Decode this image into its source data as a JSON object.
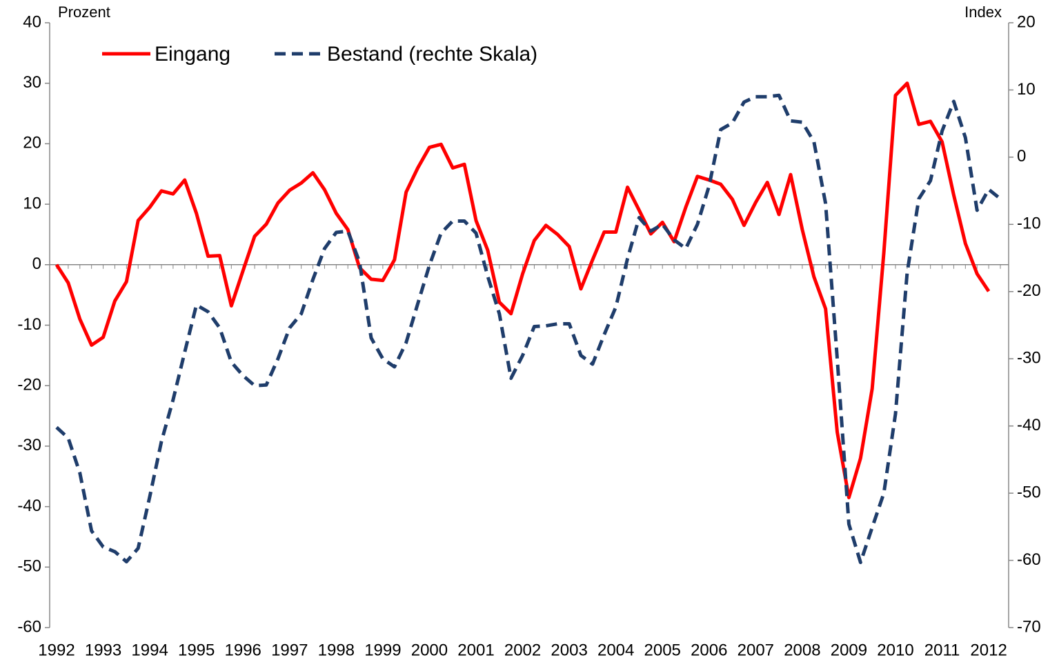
{
  "chart_data": {
    "type": "line",
    "y_label": "Prozent",
    "y2_label": "Index",
    "categories": [
      "1992",
      null,
      null,
      null,
      "1993",
      null,
      null,
      null,
      "1994",
      null,
      null,
      null,
      "1995",
      null,
      null,
      null,
      "1996",
      null,
      null,
      null,
      "1997",
      null,
      null,
      null,
      "1998",
      null,
      null,
      null,
      "1999",
      null,
      null,
      null,
      "2000",
      null,
      null,
      null,
      "2001",
      null,
      null,
      null,
      "2002",
      null,
      null,
      null,
      "2003",
      null,
      null,
      null,
      "2004",
      null,
      null,
      null,
      "2005",
      null,
      null,
      null,
      "2006",
      null,
      null,
      null,
      "2007",
      null,
      null,
      null,
      "2008",
      null,
      null,
      null,
      "2009",
      null,
      null,
      null,
      "2010",
      null,
      null,
      null,
      "2011",
      null,
      null,
      null,
      "2012",
      null
    ],
    "series": [
      {
        "name": "Eingang",
        "color": "#ff0000",
        "dash": false,
        "values": [
          0,
          -3,
          -9,
          -13.3,
          -12,
          -6,
          -2.8,
          7.3,
          9.5,
          12.2,
          11.7,
          14,
          8.5,
          1.4,
          1.5,
          -6.8,
          -1,
          4.7,
          6.7,
          10.2,
          12.3,
          13.5,
          15.2,
          12.4,
          8.5,
          5.8,
          -0.5,
          -2.4,
          -2.6,
          0.8,
          12,
          16,
          19.4,
          19.9,
          16,
          16.6,
          7.3,
          2.4,
          -6.2,
          -8.1,
          -1.5,
          4,
          6.5,
          5,
          3,
          -4,
          0.8,
          5.4,
          5.4,
          12.8,
          9,
          5.1,
          7,
          3.8,
          9.5,
          14.6,
          14,
          13.3,
          10.8,
          6.5,
          10.3,
          13.6,
          8.3,
          14.9,
          5.8,
          -2,
          -7.3,
          -27.7,
          -38.5,
          -32,
          -20.5,
          2,
          28,
          30,
          23.2,
          23.7,
          20.3,
          11.5,
          3.5,
          -1.5,
          -4.4,
          null
        ]
      },
      {
        "name": "Bestand (rechte Skala)",
        "color": "#1f3d6b",
        "dash": true,
        "axis": "y2",
        "values": [
          -40.2,
          -41.8,
          -47,
          -55.6,
          -58,
          -58.7,
          -60.2,
          -58.2,
          -50.5,
          -42.3,
          -36.1,
          -29,
          -22,
          -23,
          -25.4,
          -30.5,
          -32.5,
          -34,
          -33.9,
          -30,
          -25.4,
          -23.3,
          -18.2,
          -13.6,
          -11.2,
          -11,
          -15.6,
          -26.9,
          -30,
          -31.2,
          -27.6,
          -21.8,
          -16.1,
          -11.3,
          -9.5,
          -9.5,
          -11.3,
          -17.7,
          -23.3,
          -32.9,
          -29.5,
          -25.2,
          -25.1,
          -24.8,
          -24.8,
          -29.5,
          -30.8,
          -26.4,
          -22.3,
          -15.1,
          -9,
          -11,
          -10,
          -12.3,
          -13.6,
          -10,
          -4.3,
          4.1,
          5.1,
          8.2,
          9,
          9,
          9.2,
          5.4,
          5.2,
          2.3,
          -6.9,
          -30,
          -54.6,
          -60.3,
          -55.1,
          -50,
          -38.2,
          -17.2,
          -6.2,
          -3.5,
          3.9,
          8.3,
          2.9,
          -7.9,
          -4.8,
          -6.2
        ]
      }
    ],
    "ylim": [
      -60,
      40
    ],
    "yticks": [
      -60,
      -50,
      -40,
      -30,
      -20,
      -10,
      0,
      10,
      20,
      30,
      40
    ],
    "y2lim": [
      -70,
      20
    ],
    "y2ticks": [
      -70,
      -60,
      -50,
      -40,
      -30,
      -20,
      -10,
      0,
      10,
      20
    ],
    "legend": "upper left",
    "grid": false
  }
}
